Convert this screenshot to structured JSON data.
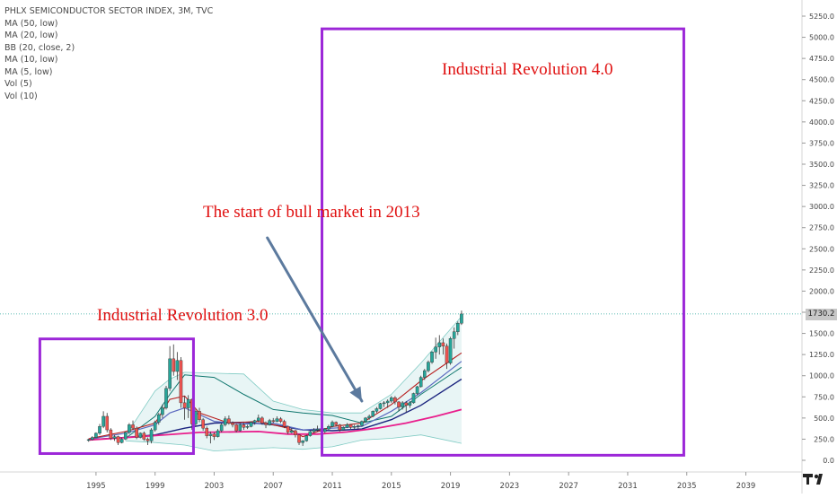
{
  "chart_data": {
    "type": "line",
    "title": "PHLX SEMICONDUCTOR SECTOR INDEX, 3M, TVC",
    "indicators": [
      "MA (50, low)",
      "MA (20, low)",
      "BB (20, close, 2)",
      "MA (10, low)",
      "MA (5, low)",
      "Vol (5)",
      "Vol (10)"
    ],
    "xlabel": "",
    "ylabel": "",
    "xlim": [
      1988.5,
      2042.8
    ],
    "ylim": [
      -80,
      5370
    ],
    "x_ticks": [
      1995,
      1999,
      2003,
      2007,
      2011,
      2015,
      2019,
      2023,
      2027,
      2031,
      2035,
      2039
    ],
    "x_tick_labels": [
      "1995",
      "1999",
      "2003",
      "2007",
      "2011",
      "2015",
      "2019",
      "2023",
      "2027",
      "2031",
      "2035",
      "2039"
    ],
    "y_ticks": [
      0,
      250,
      500,
      750,
      1000,
      1250,
      1500,
      1750,
      2000,
      2250,
      2500,
      2750,
      3000,
      3250,
      3500,
      3750,
      4000,
      4250,
      4500,
      4750,
      5000,
      5250
    ],
    "y_tick_labels": [
      "0.0",
      "250.0",
      "500.0",
      "750.0",
      "1000.0",
      "1250.0",
      "1500.0",
      "1750.0",
      "2000.0",
      "2250.0",
      "2500.0",
      "2750.0",
      "3000.0",
      "3250.0",
      "3500.0",
      "3750.0",
      "4000.0",
      "4250.0",
      "4500.0",
      "4750.0",
      "5000.0",
      "5250.0"
    ],
    "current_price": 1730.2,
    "current_price_label": "1730.2",
    "grid": false,
    "colors": {
      "up": "#26a69a",
      "down": "#ef5350",
      "ma50": "#e91e8c",
      "ma20": "#1a237e",
      "bb_basis": "#0f766e",
      "bb_fill": "#e0f2f1",
      "ma10": "#5c6bc0",
      "ma5": "#b71c1c",
      "box": "#9c27d8",
      "arrow": "#5c7a9e",
      "annotation": "#e01010"
    },
    "candles": [
      {
        "t": 1994.5,
        "o": 235,
        "h": 255,
        "l": 220,
        "c": 245
      },
      {
        "t": 1994.75,
        "o": 245,
        "h": 285,
        "l": 235,
        "c": 270
      },
      {
        "t": 1995.0,
        "o": 270,
        "h": 330,
        "l": 260,
        "c": 320
      },
      {
        "t": 1995.25,
        "o": 320,
        "h": 430,
        "l": 300,
        "c": 400
      },
      {
        "t": 1995.5,
        "o": 400,
        "h": 580,
        "l": 380,
        "c": 520
      },
      {
        "t": 1995.75,
        "o": 520,
        "h": 560,
        "l": 330,
        "c": 360
      },
      {
        "t": 1996.0,
        "o": 360,
        "h": 380,
        "l": 240,
        "c": 260
      },
      {
        "t": 1996.25,
        "o": 260,
        "h": 300,
        "l": 230,
        "c": 280
      },
      {
        "t": 1996.5,
        "o": 280,
        "h": 290,
        "l": 180,
        "c": 210
      },
      {
        "t": 1996.75,
        "o": 210,
        "h": 270,
        "l": 200,
        "c": 250
      },
      {
        "t": 1997.0,
        "o": 250,
        "h": 340,
        "l": 240,
        "c": 330
      },
      {
        "t": 1997.25,
        "o": 330,
        "h": 440,
        "l": 310,
        "c": 420
      },
      {
        "t": 1997.5,
        "o": 420,
        "h": 470,
        "l": 360,
        "c": 380
      },
      {
        "t": 1997.75,
        "o": 380,
        "h": 400,
        "l": 250,
        "c": 270
      },
      {
        "t": 1998.0,
        "o": 270,
        "h": 330,
        "l": 260,
        "c": 320
      },
      {
        "t": 1998.25,
        "o": 320,
        "h": 340,
        "l": 230,
        "c": 250
      },
      {
        "t": 1998.5,
        "o": 250,
        "h": 270,
        "l": 180,
        "c": 230
      },
      {
        "t": 1998.75,
        "o": 230,
        "h": 380,
        "l": 200,
        "c": 360
      },
      {
        "t": 1999.0,
        "o": 360,
        "h": 470,
        "l": 340,
        "c": 450
      },
      {
        "t": 1999.25,
        "o": 450,
        "h": 560,
        "l": 420,
        "c": 540
      },
      {
        "t": 1999.5,
        "o": 540,
        "h": 660,
        "l": 500,
        "c": 620
      },
      {
        "t": 1999.75,
        "o": 620,
        "h": 880,
        "l": 600,
        "c": 850
      },
      {
        "t": 2000.0,
        "o": 850,
        "h": 1350,
        "l": 820,
        "c": 1200
      },
      {
        "t": 2000.25,
        "o": 1200,
        "h": 1370,
        "l": 1000,
        "c": 1050
      },
      {
        "t": 2000.5,
        "o": 1050,
        "h": 1280,
        "l": 950,
        "c": 1180
      },
      {
        "t": 2000.75,
        "o": 1180,
        "h": 1220,
        "l": 620,
        "c": 680
      },
      {
        "t": 2001.0,
        "o": 680,
        "h": 760,
        "l": 480,
        "c": 620
      },
      {
        "t": 2001.25,
        "o": 620,
        "h": 770,
        "l": 500,
        "c": 720
      },
      {
        "t": 2001.5,
        "o": 720,
        "h": 730,
        "l": 360,
        "c": 430
      },
      {
        "t": 2001.75,
        "o": 430,
        "h": 610,
        "l": 400,
        "c": 580
      },
      {
        "t": 2002.0,
        "o": 580,
        "h": 620,
        "l": 450,
        "c": 480
      },
      {
        "t": 2002.25,
        "o": 480,
        "h": 500,
        "l": 350,
        "c": 380
      },
      {
        "t": 2002.5,
        "o": 380,
        "h": 400,
        "l": 260,
        "c": 290
      },
      {
        "t": 2002.75,
        "o": 290,
        "h": 340,
        "l": 200,
        "c": 310
      },
      {
        "t": 2003.0,
        "o": 310,
        "h": 330,
        "l": 240,
        "c": 280
      },
      {
        "t": 2003.25,
        "o": 280,
        "h": 370,
        "l": 270,
        "c": 350
      },
      {
        "t": 2003.5,
        "o": 350,
        "h": 440,
        "l": 330,
        "c": 420
      },
      {
        "t": 2003.75,
        "o": 420,
        "h": 520,
        "l": 400,
        "c": 490
      },
      {
        "t": 2004.0,
        "o": 490,
        "h": 530,
        "l": 420,
        "c": 440
      },
      {
        "t": 2004.25,
        "o": 440,
        "h": 460,
        "l": 390,
        "c": 420
      },
      {
        "t": 2004.5,
        "o": 420,
        "h": 430,
        "l": 330,
        "c": 350
      },
      {
        "t": 2004.75,
        "o": 350,
        "h": 440,
        "l": 340,
        "c": 420
      },
      {
        "t": 2005.0,
        "o": 420,
        "h": 440,
        "l": 360,
        "c": 390
      },
      {
        "t": 2005.25,
        "o": 390,
        "h": 420,
        "l": 370,
        "c": 400
      },
      {
        "t": 2005.5,
        "o": 400,
        "h": 460,
        "l": 390,
        "c": 450
      },
      {
        "t": 2005.75,
        "o": 450,
        "h": 480,
        "l": 420,
        "c": 470
      },
      {
        "t": 2006.0,
        "o": 470,
        "h": 540,
        "l": 450,
        "c": 500
      },
      {
        "t": 2006.25,
        "o": 500,
        "h": 520,
        "l": 420,
        "c": 440
      },
      {
        "t": 2006.5,
        "o": 440,
        "h": 460,
        "l": 380,
        "c": 420
      },
      {
        "t": 2006.75,
        "o": 420,
        "h": 490,
        "l": 410,
        "c": 470
      },
      {
        "t": 2007.0,
        "o": 470,
        "h": 500,
        "l": 440,
        "c": 460
      },
      {
        "t": 2007.25,
        "o": 460,
        "h": 520,
        "l": 450,
        "c": 490
      },
      {
        "t": 2007.5,
        "o": 490,
        "h": 510,
        "l": 440,
        "c": 460
      },
      {
        "t": 2007.75,
        "o": 460,
        "h": 480,
        "l": 380,
        "c": 400
      },
      {
        "t": 2008.0,
        "o": 400,
        "h": 410,
        "l": 310,
        "c": 330
      },
      {
        "t": 2008.25,
        "o": 330,
        "h": 380,
        "l": 320,
        "c": 350
      },
      {
        "t": 2008.5,
        "o": 350,
        "h": 360,
        "l": 270,
        "c": 300
      },
      {
        "t": 2008.75,
        "o": 300,
        "h": 310,
        "l": 180,
        "c": 210
      },
      {
        "t": 2009.0,
        "o": 210,
        "h": 240,
        "l": 170,
        "c": 230
      },
      {
        "t": 2009.25,
        "o": 230,
        "h": 300,
        "l": 220,
        "c": 290
      },
      {
        "t": 2009.5,
        "o": 290,
        "h": 350,
        "l": 280,
        "c": 340
      },
      {
        "t": 2009.75,
        "o": 340,
        "h": 380,
        "l": 320,
        "c": 360
      },
      {
        "t": 2010.0,
        "o": 360,
        "h": 410,
        "l": 340,
        "c": 370
      },
      {
        "t": 2010.25,
        "o": 370,
        "h": 400,
        "l": 320,
        "c": 340
      },
      {
        "t": 2010.5,
        "o": 340,
        "h": 380,
        "l": 320,
        "c": 370
      },
      {
        "t": 2010.75,
        "o": 370,
        "h": 420,
        "l": 360,
        "c": 400
      },
      {
        "t": 2011.0,
        "o": 400,
        "h": 470,
        "l": 390,
        "c": 450
      },
      {
        "t": 2011.25,
        "o": 450,
        "h": 460,
        "l": 400,
        "c": 420
      },
      {
        "t": 2011.5,
        "o": 420,
        "h": 430,
        "l": 340,
        "c": 360
      },
      {
        "t": 2011.75,
        "o": 360,
        "h": 400,
        "l": 350,
        "c": 390
      },
      {
        "t": 2012.0,
        "o": 390,
        "h": 440,
        "l": 380,
        "c": 420
      },
      {
        "t": 2012.25,
        "o": 420,
        "h": 430,
        "l": 370,
        "c": 390
      },
      {
        "t": 2012.5,
        "o": 390,
        "h": 420,
        "l": 370,
        "c": 400
      },
      {
        "t": 2012.75,
        "o": 400,
        "h": 420,
        "l": 370,
        "c": 410
      },
      {
        "t": 2013.0,
        "o": 410,
        "h": 470,
        "l": 400,
        "c": 460
      },
      {
        "t": 2013.25,
        "o": 460,
        "h": 510,
        "l": 450,
        "c": 500
      },
      {
        "t": 2013.5,
        "o": 500,
        "h": 540,
        "l": 480,
        "c": 520
      },
      {
        "t": 2013.75,
        "o": 520,
        "h": 590,
        "l": 510,
        "c": 580
      },
      {
        "t": 2014.0,
        "o": 580,
        "h": 630,
        "l": 560,
        "c": 610
      },
      {
        "t": 2014.25,
        "o": 610,
        "h": 680,
        "l": 600,
        "c": 670
      },
      {
        "t": 2014.5,
        "o": 670,
        "h": 700,
        "l": 630,
        "c": 680
      },
      {
        "t": 2014.75,
        "o": 680,
        "h": 720,
        "l": 620,
        "c": 700
      },
      {
        "t": 2015.0,
        "o": 700,
        "h": 760,
        "l": 680,
        "c": 740
      },
      {
        "t": 2015.25,
        "o": 740,
        "h": 760,
        "l": 660,
        "c": 690
      },
      {
        "t": 2015.5,
        "o": 690,
        "h": 700,
        "l": 580,
        "c": 630
      },
      {
        "t": 2015.75,
        "o": 630,
        "h": 700,
        "l": 600,
        "c": 680
      },
      {
        "t": 2016.0,
        "o": 680,
        "h": 700,
        "l": 570,
        "c": 650
      },
      {
        "t": 2016.25,
        "o": 650,
        "h": 700,
        "l": 620,
        "c": 680
      },
      {
        "t": 2016.5,
        "o": 680,
        "h": 800,
        "l": 670,
        "c": 790
      },
      {
        "t": 2016.75,
        "o": 790,
        "h": 880,
        "l": 770,
        "c": 870
      },
      {
        "t": 2017.0,
        "o": 870,
        "h": 1000,
        "l": 860,
        "c": 980
      },
      {
        "t": 2017.25,
        "o": 980,
        "h": 1080,
        "l": 950,
        "c": 1060
      },
      {
        "t": 2017.5,
        "o": 1060,
        "h": 1180,
        "l": 1040,
        "c": 1160
      },
      {
        "t": 2017.75,
        "o": 1160,
        "h": 1290,
        "l": 1140,
        "c": 1280
      },
      {
        "t": 2018.0,
        "o": 1280,
        "h": 1450,
        "l": 1200,
        "c": 1340
      },
      {
        "t": 2018.25,
        "o": 1340,
        "h": 1480,
        "l": 1250,
        "c": 1390
      },
      {
        "t": 2018.5,
        "o": 1390,
        "h": 1440,
        "l": 1250,
        "c": 1350
      },
      {
        "t": 2018.75,
        "o": 1350,
        "h": 1380,
        "l": 1080,
        "c": 1150
      },
      {
        "t": 2019.0,
        "o": 1150,
        "h": 1460,
        "l": 1130,
        "c": 1440
      },
      {
        "t": 2019.25,
        "o": 1440,
        "h": 1570,
        "l": 1320,
        "c": 1520
      },
      {
        "t": 2019.5,
        "o": 1520,
        "h": 1640,
        "l": 1480,
        "c": 1620
      },
      {
        "t": 2019.75,
        "o": 1620,
        "h": 1770,
        "l": 1600,
        "c": 1730
      }
    ],
    "lines": {
      "ma50": [
        [
          1994.5,
          240
        ],
        [
          1998,
          280
        ],
        [
          2002,
          330
        ],
        [
          2006,
          340
        ],
        [
          2008,
          310
        ],
        [
          2010,
          310
        ],
        [
          2012,
          335
        ],
        [
          2014,
          380
        ],
        [
          2016,
          440
        ],
        [
          2018,
          520
        ],
        [
          2019.75,
          600
        ]
      ],
      "ma20": [
        [
          1994.5,
          245
        ],
        [
          1997,
          270
        ],
        [
          1999,
          300
        ],
        [
          2001,
          380
        ],
        [
          2003,
          440
        ],
        [
          2005,
          450
        ],
        [
          2007,
          420
        ],
        [
          2009,
          360
        ],
        [
          2011,
          350
        ],
        [
          2013,
          370
        ],
        [
          2015,
          480
        ],
        [
          2017,
          650
        ],
        [
          2019.75,
          960
        ]
      ],
      "bb_upper": [
        [
          1997,
          290
        ],
        [
          1999,
          820
        ],
        [
          2000,
          960
        ],
        [
          2001,
          1040
        ],
        [
          2003,
          1030
        ],
        [
          2005,
          1020
        ],
        [
          2007,
          700
        ],
        [
          2009,
          600
        ],
        [
          2011,
          560
        ],
        [
          2013,
          560
        ],
        [
          2015,
          780
        ],
        [
          2017,
          1150
        ],
        [
          2019.75,
          1700
        ]
      ],
      "bb_lower": [
        [
          1997,
          230
        ],
        [
          1999,
          210
        ],
        [
          2001,
          180
        ],
        [
          2003,
          110
        ],
        [
          2005,
          130
        ],
        [
          2007,
          150
        ],
        [
          2009,
          130
        ],
        [
          2011,
          160
        ],
        [
          2013,
          240
        ],
        [
          2015,
          260
        ],
        [
          2017,
          300
        ],
        [
          2019.75,
          200
        ]
      ],
      "bb_basis": [
        [
          1997,
          260
        ],
        [
          1999,
          520
        ],
        [
          2000,
          780
        ],
        [
          2001,
          1010
        ],
        [
          2003,
          980
        ],
        [
          2005,
          780
        ],
        [
          2007,
          600
        ],
        [
          2009,
          560
        ],
        [
          2011,
          530
        ],
        [
          2013,
          440
        ],
        [
          2015,
          520
        ],
        [
          2017,
          780
        ],
        [
          2019.75,
          1100
        ]
      ],
      "ma10": [
        [
          1994.5,
          250
        ],
        [
          1997,
          320
        ],
        [
          1999,
          420
        ],
        [
          2000,
          560
        ],
        [
          2001,
          620
        ],
        [
          2003,
          460
        ],
        [
          2005,
          430
        ],
        [
          2007,
          440
        ],
        [
          2009,
          360
        ],
        [
          2011,
          380
        ],
        [
          2013,
          400
        ],
        [
          2015,
          580
        ],
        [
          2017,
          800
        ],
        [
          2019.75,
          1170
        ]
      ],
      "ma5": [
        [
          1994.5,
          255
        ],
        [
          1997,
          340
        ],
        [
          1999,
          440
        ],
        [
          2000,
          720
        ],
        [
          2001,
          760
        ],
        [
          2002,
          560
        ],
        [
          2004,
          440
        ],
        [
          2006,
          460
        ],
        [
          2008,
          380
        ],
        [
          2009,
          280
        ],
        [
          2011,
          400
        ],
        [
          2013,
          440
        ],
        [
          2015,
          660
        ],
        [
          2017,
          940
        ],
        [
          2019.75,
          1270
        ]
      ]
    },
    "annotations": {
      "ir3_label": "Industrial Revolution 3.0",
      "ir4_label": "Industrial Revolution 4.0",
      "bull_label": "The start of bull market in 2013"
    }
  }
}
